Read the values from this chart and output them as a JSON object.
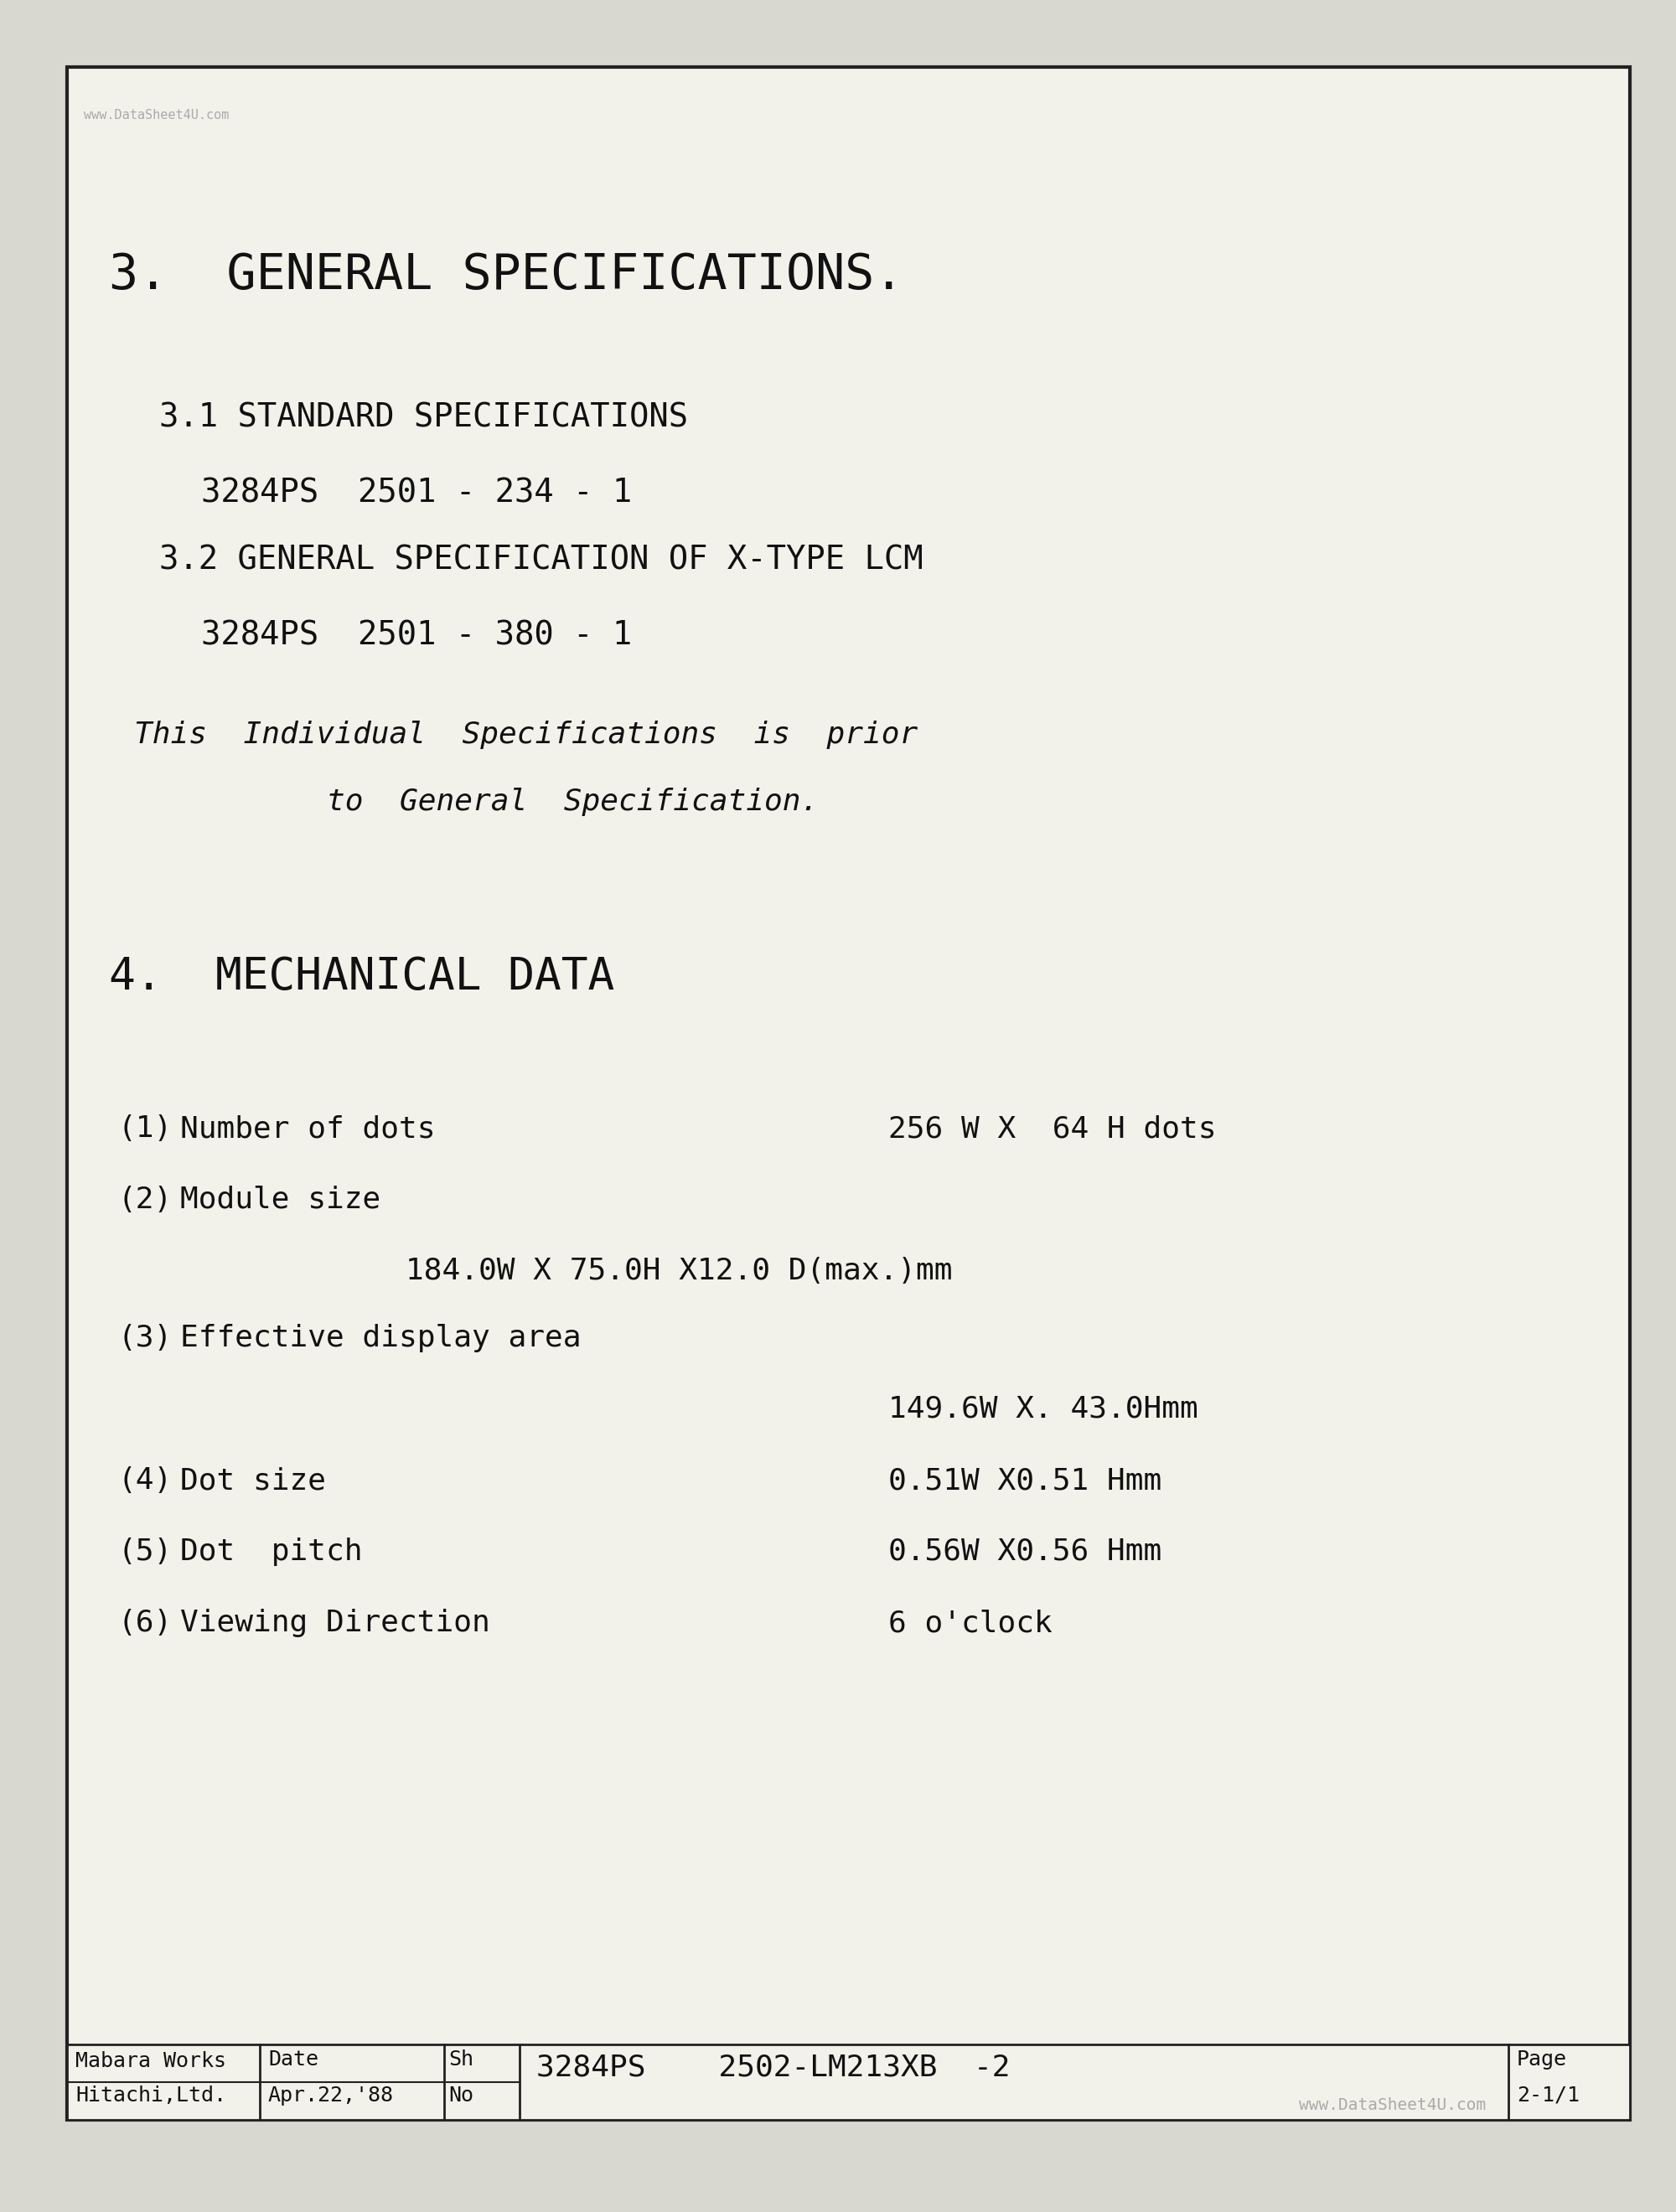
{
  "bg_color": "#d8d8d0",
  "paper_color": "#f2f2ea",
  "border_color": "#222222",
  "text_color": "#111111",
  "font_family": "DejaVu Sans Mono",
  "watermark_color": "#aaaaaa",
  "watermark_text": "www.DataSheet4U.com",
  "title_section3": "3.  GENERAL SPECIFICATIONS.",
  "sub31": "3.1 STANDARD SPECIFICATIONS",
  "sub31_val": "3284PS  2501 - 234 - 1",
  "sub32": "3.2 GENERAL SPECIFICATION OF X-TYPE LCM",
  "sub32_val": "3284PS  2501 - 380 - 1",
  "note_line1": "This  Individual  Specifications  is  prior",
  "note_line2": "to  General  Specification.",
  "title_section4": "4.  MECHANICAL DATA",
  "item1_num": "(1)",
  "item1_label": "Number of dots",
  "item1_value": "256 W X  64 H dots",
  "item2_num": "(2)",
  "item2_label": "Module size",
  "item2_sub": "        184.0W X 75.0H X12.0 D(max.)mm",
  "item3_num": "(3)",
  "item3_label": "Effective display area",
  "item3_value": "149.6W X. 43.0Hmm",
  "item4_num": "(4)",
  "item4_label": "Dot size",
  "item4_value": "0.51W X0.51 Hmm",
  "item5_num": "(5)",
  "item5_label": "Dot  pitch",
  "item5_value": "0.56W X0.56 Hmm",
  "item6_num": "(6)",
  "item6_label": "Viewing Direction",
  "item6_value": "6 o'clock",
  "footer_left1": "Mabara Works",
  "footer_left2": "Hitachi,Ltd.",
  "footer_date_label": "Date",
  "footer_date": "Apr.22,'88",
  "footer_sh_label": "Sh",
  "footer_no_label": "No",
  "footer_code": "3284PS    2502-LM213XB  -2",
  "footer_page_label": "Page",
  "footer_page": "2-1/1",
  "footer_watermark": "www.DataSheet4U.com"
}
